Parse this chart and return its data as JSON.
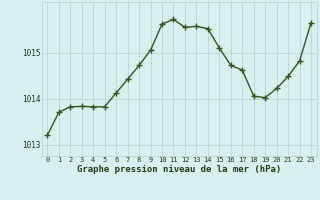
{
  "x": [
    0,
    1,
    2,
    3,
    4,
    5,
    6,
    7,
    8,
    9,
    10,
    11,
    12,
    13,
    14,
    15,
    16,
    17,
    18,
    19,
    20,
    21,
    22,
    23
  ],
  "y": [
    1013.2,
    1013.7,
    1013.82,
    1013.83,
    1013.82,
    1013.82,
    1014.12,
    1014.42,
    1014.72,
    1015.05,
    1015.62,
    1015.72,
    1015.55,
    1015.57,
    1015.52,
    1015.1,
    1014.72,
    1014.62,
    1014.05,
    1014.02,
    1014.22,
    1014.48,
    1014.82,
    1015.65
  ],
  "line_color": "#2d5a1b",
  "marker": "+",
  "markersize": 4,
  "markeredgewidth": 1.0,
  "linewidth": 1.0,
  "bg_color": "#d8f0f0",
  "grid_color": "#b8d0d0",
  "xlabel": "Graphe pression niveau de la mer (hPa)",
  "xlabel_fontsize": 6.5,
  "xlabel_color": "#1a4010",
  "yticks": [
    1013,
    1014,
    1015
  ],
  "ytick_labels": [
    "1013",
    "1014",
    "1015"
  ],
  "xtick_labels": [
    "0",
    "1",
    "2",
    "3",
    "4",
    "5",
    "6",
    "7",
    "8",
    "9",
    "10",
    "11",
    "12",
    "13",
    "14",
    "15",
    "16",
    "17",
    "18",
    "19",
    "20",
    "21",
    "22",
    "23"
  ],
  "tick_color": "#1a4010",
  "ytick_fontsize": 5.5,
  "xtick_fontsize": 5.0,
  "ylim": [
    1012.75,
    1016.1
  ],
  "xlim": [
    -0.5,
    23.5
  ]
}
